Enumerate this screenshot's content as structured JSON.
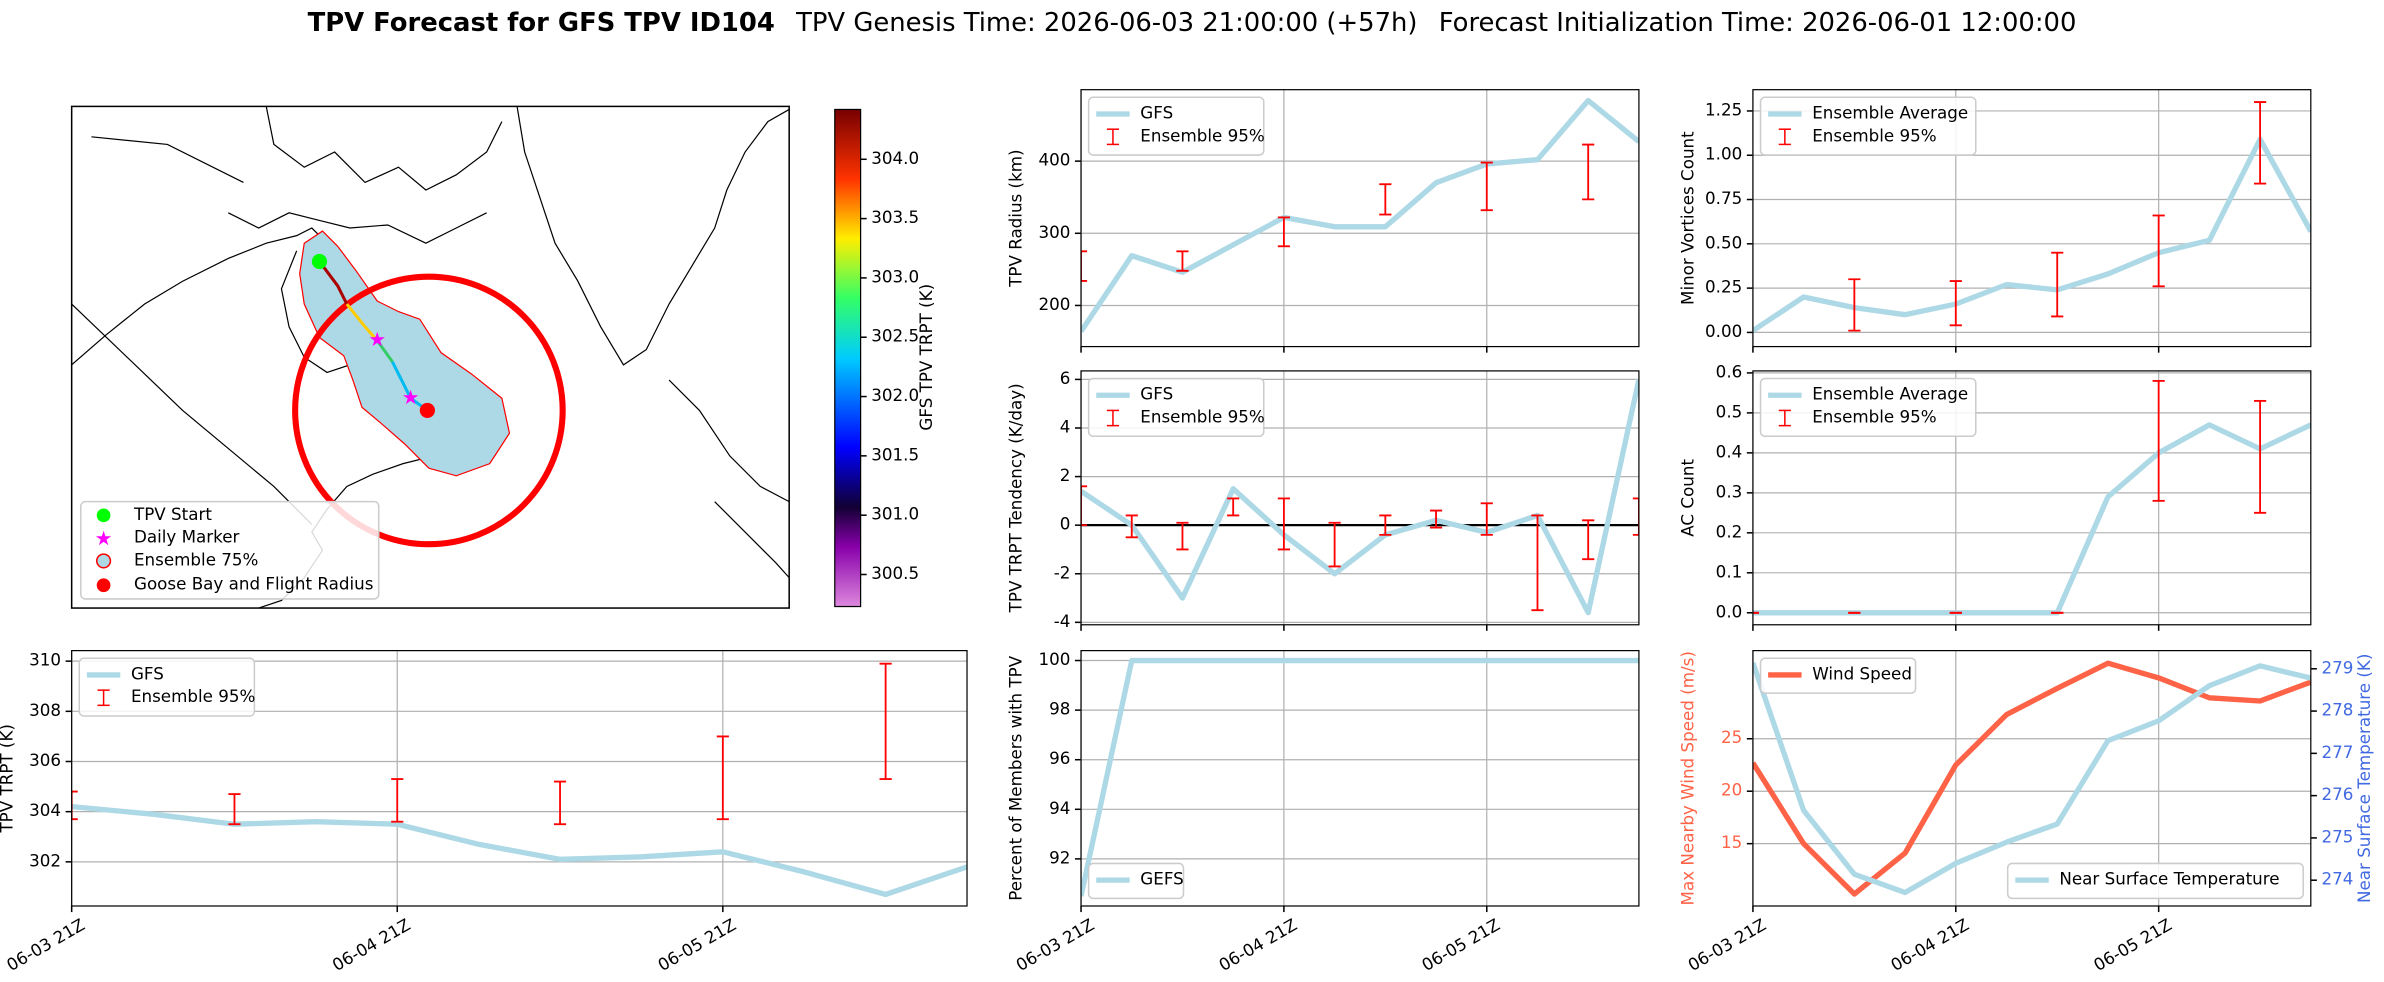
{
  "title": {
    "main": "TPV Forecast for GFS TPV ID104",
    "genesis": "TPV Genesis Time: 2026-06-03 21:00:00 (+57h)",
    "init": "Forecast Initialization Time: 2026-06-01 12:00:00"
  },
  "map": {
    "legend": [
      "TPV Start",
      "Daily Marker",
      "Ensemble 75%",
      "Goose Bay and Flight Radius"
    ],
    "colorbar": {
      "label": "GFS TPV TRPT (K)",
      "lim": [
        300.23,
        304.42
      ],
      "ticks": [
        300.5,
        {
          "value": 301,
          "label": "301.0"
        },
        301.5,
        {
          "value": 302,
          "label": "302.0"
        },
        302.5,
        {
          "value": 303,
          "label": "303.0"
        },
        303.5,
        {
          "value": 304,
          "label": "304.0"
        }
      ]
    }
  },
  "chart_data": [
    {
      "type": "line",
      "ylabel": "TPV TRPT (K)",
      "x": [
        "06-03 21Z",
        "06-04 03Z",
        "06-04 09Z",
        "06-04 15Z",
        "06-04 21Z",
        "06-05 03Z",
        "06-05 09Z",
        "06-05 15Z",
        "06-05 21Z",
        "06-06 03Z",
        "06-06 09Z",
        "06-06 15Z"
      ],
      "xlim": [
        "06-03 21Z",
        "06-06 15Z"
      ],
      "xticks": [
        "06-03 21Z",
        "06-04 21Z",
        "06-05 21Z"
      ],
      "xtick_labels": true,
      "ylim": [
        300.24,
        310.42
      ],
      "yticks": [
        302,
        304,
        306,
        308,
        310
      ],
      "grid": true,
      "legend": "upper left",
      "series": [
        {
          "name": "GFS",
          "color": "#add8e6",
          "values": [
            304.2,
            303.9,
            303.5,
            303.6,
            303.5,
            302.7,
            302.1,
            302.2,
            302.4,
            301.6,
            300.7,
            301.8
          ]
        },
        {
          "name": "Ensemble 95%",
          "type": "errorbar",
          "color": "#ff0000",
          "x": [
            "06-03 21Z",
            "06-04 09Z",
            "06-04 21Z",
            "06-05 09Z",
            "06-05 21Z",
            "06-06 09Z"
          ],
          "lower": [
            303.7,
            303.5,
            303.6,
            303.5,
            303.7,
            305.3
          ],
          "upper": [
            304.8,
            304.7,
            305.3,
            305.2,
            307.0,
            309.9
          ]
        }
      ]
    },
    {
      "type": "line",
      "ylabel": "TPV Radius (km)",
      "x": [
        "06-03 21Z",
        "06-04 03Z",
        "06-04 09Z",
        "06-04 15Z",
        "06-04 21Z",
        "06-05 03Z",
        "06-05 09Z",
        "06-05 15Z",
        "06-05 21Z",
        "06-06 03Z",
        "06-06 09Z",
        "06-06 15Z"
      ],
      "xlim": [
        "06-03 21Z",
        "06-06 15Z"
      ],
      "xticks": [
        "06-03 21Z",
        "06-04 21Z",
        "06-05 21Z"
      ],
      "xtick_labels": false,
      "ylim": [
        143,
        499
      ],
      "yticks": [
        200,
        300,
        400
      ],
      "grid": true,
      "legend": "upper left",
      "series": [
        {
          "name": "GFS",
          "color": "#add8e6",
          "values": [
            164,
            269,
            246,
            284,
            322,
            309,
            309,
            370,
            396,
            402,
            484,
            427
          ]
        },
        {
          "name": "Ensemble 95%",
          "type": "errorbar",
          "color": "#ff0000",
          "x": [
            "06-03 21Z",
            "06-04 09Z",
            "06-04 21Z",
            "06-05 09Z",
            "06-05 21Z",
            "06-06 09Z"
          ],
          "lower": [
            234,
            248,
            282,
            326,
            332,
            347
          ],
          "upper": [
            275,
            275,
            322,
            368,
            398,
            423
          ]
        }
      ]
    },
    {
      "type": "line",
      "ylabel": "TPV TRPT Tendency (K/day)",
      "x": [
        "06-03 21Z",
        "06-04 03Z",
        "06-04 09Z",
        "06-04 15Z",
        "06-04 21Z",
        "06-05 03Z",
        "06-05 09Z",
        "06-05 15Z",
        "06-05 21Z",
        "06-06 03Z",
        "06-06 09Z",
        "06-06 15Z"
      ],
      "xlim": [
        "06-03 21Z",
        "06-06 15Z"
      ],
      "xticks": [
        "06-03 21Z",
        "06-04 21Z",
        "06-05 21Z"
      ],
      "xtick_labels": false,
      "ylim": [
        -4.1,
        6.35
      ],
      "yticks": [
        -4,
        -2,
        0,
        2,
        4,
        6
      ],
      "grid": true,
      "legend": "upper left",
      "hline": 0,
      "series": [
        {
          "name": "GFS",
          "color": "#add8e6",
          "values": [
            1.4,
            0,
            -3.0,
            1.5,
            -0.4,
            -2.0,
            -0.4,
            0.2,
            -0.3,
            0.4,
            -3.6,
            6.0
          ]
        },
        {
          "name": "Ensemble 95%",
          "type": "errorbar",
          "color": "#ff0000",
          "x": [
            "06-03 21Z",
            "06-04 03Z",
            "06-04 09Z",
            "06-04 15Z",
            "06-04 21Z",
            "06-05 03Z",
            "06-05 09Z",
            "06-05 15Z",
            "06-05 21Z",
            "06-06 03Z",
            "06-06 09Z",
            "06-06 15Z"
          ],
          "lower": [
            0.0,
            -0.5,
            -1.0,
            0.4,
            -1.0,
            -1.7,
            -0.4,
            -0.1,
            -0.4,
            -3.5,
            -1.4,
            -0.4
          ],
          "upper": [
            1.6,
            0.4,
            0.1,
            1.1,
            1.1,
            0.1,
            0.4,
            0.6,
            0.9,
            0.4,
            0.2,
            1.1
          ]
        }
      ]
    },
    {
      "type": "line",
      "ylabel": "Percent of Members with TPV",
      "x": [
        "06-03 21Z",
        "06-04 03Z",
        "06-04 09Z",
        "06-04 15Z",
        "06-04 21Z",
        "06-05 03Z",
        "06-05 09Z",
        "06-05 15Z",
        "06-05 21Z",
        "06-06 03Z",
        "06-06 09Z",
        "06-06 15Z"
      ],
      "xlim": [
        "06-03 21Z",
        "06-06 15Z"
      ],
      "xticks": [
        "06-03 21Z",
        "06-04 21Z",
        "06-05 21Z"
      ],
      "xtick_labels": true,
      "ylim": [
        90.1,
        100.4
      ],
      "yticks": [
        92,
        94,
        96,
        98,
        100
      ],
      "grid": true,
      "legend": "lower left",
      "series": [
        {
          "name": "GEFS",
          "color": "#add8e6",
          "values": [
            90.5,
            100,
            100,
            100,
            100,
            100,
            100,
            100,
            100,
            100,
            100,
            100
          ]
        }
      ]
    },
    {
      "type": "line",
      "ylabel": "Minor Vortices Count",
      "x": [
        "06-03 21Z",
        "06-04 03Z",
        "06-04 09Z",
        "06-04 15Z",
        "06-04 21Z",
        "06-05 03Z",
        "06-05 09Z",
        "06-05 15Z",
        "06-05 21Z",
        "06-06 03Z",
        "06-06 09Z",
        "06-06 15Z"
      ],
      "xlim": [
        "06-03 21Z",
        "06-06 15Z"
      ],
      "xticks": [
        "06-03 21Z",
        "06-04 21Z",
        "06-05 21Z"
      ],
      "xtick_labels": false,
      "ylim": [
        -0.08,
        1.37
      ],
      "yticks": [
        {
          "value": 0,
          "label": "0.00"
        },
        0.25,
        {
          "value": 0.5,
          "label": "0.50"
        },
        0.75,
        {
          "value": 1,
          "label": "1.00"
        },
        1.25
      ],
      "grid": true,
      "legend": "upper left",
      "series": [
        {
          "name": "Ensemble Average",
          "color": "#add8e6",
          "values": [
            0.01,
            0.2,
            0.14,
            0.1,
            0.16,
            0.27,
            0.24,
            0.33,
            0.45,
            0.52,
            1.09,
            0.57
          ]
        },
        {
          "name": "Ensemble 95%",
          "type": "errorbar",
          "color": "#ff0000",
          "x": [
            "06-04 09Z",
            "06-04 21Z",
            "06-05 09Z",
            "06-05 21Z",
            "06-06 09Z"
          ],
          "lower": [
            0.01,
            0.04,
            0.09,
            0.26,
            0.84
          ],
          "upper": [
            0.3,
            0.29,
            0.45,
            0.66,
            1.3
          ]
        }
      ]
    },
    {
      "type": "line",
      "ylabel": "AC Count",
      "x": [
        "06-03 21Z",
        "06-04 03Z",
        "06-04 09Z",
        "06-04 15Z",
        "06-04 21Z",
        "06-05 03Z",
        "06-05 09Z",
        "06-05 15Z",
        "06-05 21Z",
        "06-06 03Z",
        "06-06 09Z",
        "06-06 15Z"
      ],
      "xlim": [
        "06-03 21Z",
        "06-06 15Z"
      ],
      "xticks": [
        "06-03 21Z",
        "06-04 21Z",
        "06-05 21Z"
      ],
      "xtick_labels": false,
      "ylim": [
        -0.03,
        0.605
      ],
      "yticks": [
        {
          "value": 0,
          "label": "0.0"
        },
        0.1,
        0.2,
        0.3,
        0.4,
        0.5,
        0.6
      ],
      "grid": true,
      "legend": "upper left",
      "series": [
        {
          "name": "Ensemble Average",
          "color": "#add8e6",
          "values": [
            0,
            0,
            0,
            0,
            0,
            0,
            0,
            0.29,
            0.4,
            0.47,
            0.41,
            0.47
          ]
        },
        {
          "name": "Ensemble 95%",
          "type": "errorbar",
          "color": "#ff0000",
          "x": [
            "06-03 21Z",
            "06-04 09Z",
            "06-04 21Z",
            "06-05 09Z",
            "06-05 21Z",
            "06-06 09Z"
          ],
          "lower": [
            0,
            0,
            0,
            0,
            0.28,
            0.25
          ],
          "upper": [
            0,
            0,
            0,
            0,
            0.58,
            0.53
          ]
        }
      ]
    },
    {
      "type": "line",
      "ylabel": "Max Nearby Wind Speed (m/s)",
      "ylabel_color": "#ff6347",
      "y2label": "Near Surface Temperature (K)",
      "y2label_color": "#4169e1",
      "x": [
        "06-03 21Z",
        "06-04 03Z",
        "06-04 09Z",
        "06-04 15Z",
        "06-04 21Z",
        "06-05 03Z",
        "06-05 09Z",
        "06-05 15Z",
        "06-05 21Z",
        "06-06 03Z",
        "06-06 09Z",
        "06-06 15Z"
      ],
      "xlim": [
        "06-03 21Z",
        "06-06 15Z"
      ],
      "xticks": [
        "06-03 21Z",
        "06-04 21Z",
        "06-05 21Z"
      ],
      "xtick_labels": true,
      "ylim": [
        9.06,
        33.4
      ],
      "yticks": [
        15,
        20,
        25
      ],
      "y2lim": [
        273.39,
        279.43
      ],
      "y2ticks": [
        274,
        275,
        276,
        277,
        278,
        279
      ],
      "grid": true,
      "legend": "upper left",
      "y2legend": "lower right",
      "series": [
        {
          "name": "Wind Speed",
          "color": "#ff6347",
          "values": [
            22.7,
            15.0,
            10.2,
            14.1,
            22.5,
            27.3,
            29.8,
            32.2,
            30.8,
            28.9,
            28.6,
            30.4
          ]
        },
        {
          "name": "Near Surface Temperature",
          "color": "#add8e6",
          "axis": "y2",
          "values": [
            279.14,
            275.65,
            274.14,
            273.71,
            274.4,
            274.9,
            275.33,
            277.3,
            277.77,
            278.6,
            279.07,
            278.78
          ]
        }
      ]
    }
  ]
}
